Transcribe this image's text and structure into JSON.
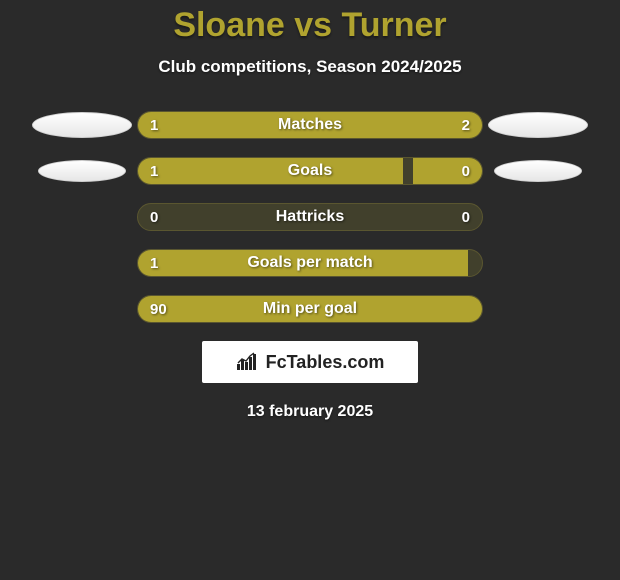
{
  "title": "Sloane vs Turner",
  "subtitle": "Club competitions, Season 2024/2025",
  "date": "13 february 2025",
  "colors": {
    "background": "#2a2a2a",
    "accent": "#b0a32f",
    "track": "#41402c",
    "text": "#ffffff"
  },
  "brand": {
    "icon": "chart-bars-icon",
    "text": "FcTables.com"
  },
  "ellipses": {
    "row_indices": [
      0,
      1
    ],
    "left_sizes": [
      "large",
      "small"
    ],
    "right_sizes": [
      "large",
      "small"
    ]
  },
  "rows": [
    {
      "label": "Matches",
      "left_val": "1",
      "right_val": "2",
      "left_pct": 33.3,
      "right_pct": 66.7
    },
    {
      "label": "Goals",
      "left_val": "1",
      "right_val": "0",
      "left_pct": 77,
      "right_pct": 20
    },
    {
      "label": "Hattricks",
      "left_val": "0",
      "right_val": "0",
      "left_pct": 0,
      "right_pct": 0
    },
    {
      "label": "Goals per match",
      "left_val": "1",
      "right_val": "",
      "left_pct": 96,
      "right_pct": 0
    },
    {
      "label": "Min per goal",
      "left_val": "90",
      "right_val": "",
      "left_pct": 100,
      "right_pct": 0
    }
  ]
}
